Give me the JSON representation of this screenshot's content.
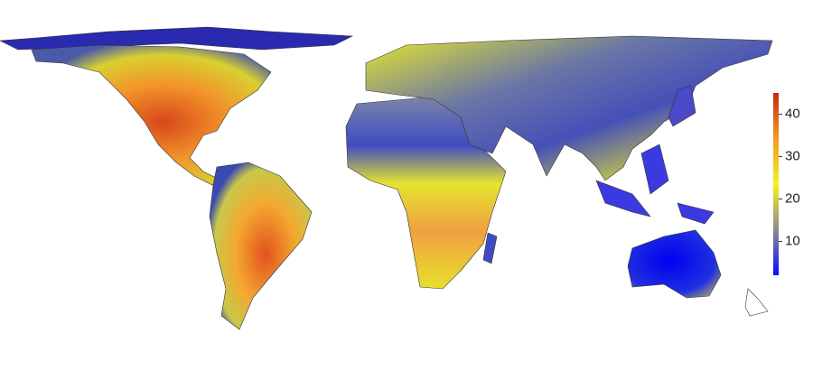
{
  "colorbar": {
    "min": 2,
    "max": 45,
    "ticks": [
      10,
      20,
      30,
      40
    ],
    "colors": [
      "#0a0aff",
      "#8c8c8c",
      "#f2f21e",
      "#f59a22",
      "#c22a12"
    ]
  }
}
